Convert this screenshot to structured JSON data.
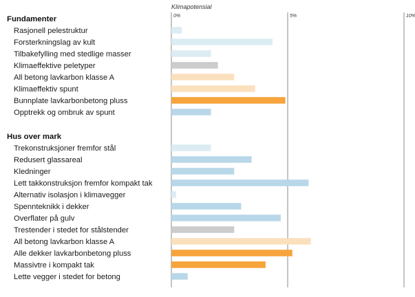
{
  "chart_data": {
    "type": "bar",
    "orientation": "horizontal",
    "title": "",
    "xlabel": "Klimapotensial",
    "xlim": [
      0,
      10
    ],
    "ticks": [
      {
        "value": 0,
        "label": "0%"
      },
      {
        "value": 5,
        "label": "5%"
      },
      {
        "value": 10,
        "label": "10%"
      }
    ],
    "grid": true,
    "groups": [
      {
        "name": "Fundamenter",
        "items": [
          {
            "label": "Rasjonell pelestruktur",
            "value": 0.45,
            "color": "#dcecf3"
          },
          {
            "label": "Forsterkningslag av kult",
            "value": 4.35,
            "color": "#dcecf3"
          },
          {
            "label": "Tilbakefylling med stedlige masser",
            "value": 1.7,
            "color": "#dcecf3"
          },
          {
            "label": "Klimaeffektive peletyper",
            "value": 2.0,
            "color": "#cccccc"
          },
          {
            "label": "All betong lavkarbon klasse A",
            "value": 2.7,
            "color": "#fbe0be"
          },
          {
            "label": "Klimaeffektiv spunt",
            "value": 3.6,
            "color": "#fbe0be"
          },
          {
            "label": "Bunnplate lavkarbonbetong pluss",
            "value": 4.9,
            "color": "#f6a43b"
          },
          {
            "label": "Opptrekk og ombruk av spunt",
            "value": 1.7,
            "color": "#b8d7e8"
          }
        ]
      },
      {
        "name": "Hus over mark",
        "items": [
          {
            "label": "Trekonstruksjoner fremfor stål",
            "value": 1.7,
            "color": "#dcecf3"
          },
          {
            "label": "Redusert glassareal",
            "value": 3.45,
            "color": "#b8d7e8"
          },
          {
            "label": "Kledninger",
            "value": 2.7,
            "color": "#b8d7e8"
          },
          {
            "label": "Lett takkonstruksjon fremfor kompakt tak",
            "value": 5.9,
            "color": "#b8d7e8"
          },
          {
            "label": "Alternativ isolasjon i klimavegger",
            "value": 0.2,
            "color": "#dcecf3"
          },
          {
            "label": "Spennteknikk i dekker",
            "value": 3.0,
            "color": "#b8d7e8"
          },
          {
            "label": "Overflater på gulv",
            "value": 4.7,
            "color": "#b8d7e8"
          },
          {
            "label": "Trestender i stedet for stålstender",
            "value": 2.7,
            "color": "#cccccc"
          },
          {
            "label": "All betong lavkarbon klasse A",
            "value": 6.0,
            "color": "#fbe0be"
          },
          {
            "label": "Alle dekker lavkarbonbetong pluss",
            "value": 5.2,
            "color": "#f6a43b"
          },
          {
            "label": "Massivtre i kompakt tak",
            "value": 4.05,
            "color": "#f6a43b"
          },
          {
            "label": "Lette vegger i stedet for betong",
            "value": 0.7,
            "color": "#b8d7e8"
          }
        ]
      }
    ]
  }
}
